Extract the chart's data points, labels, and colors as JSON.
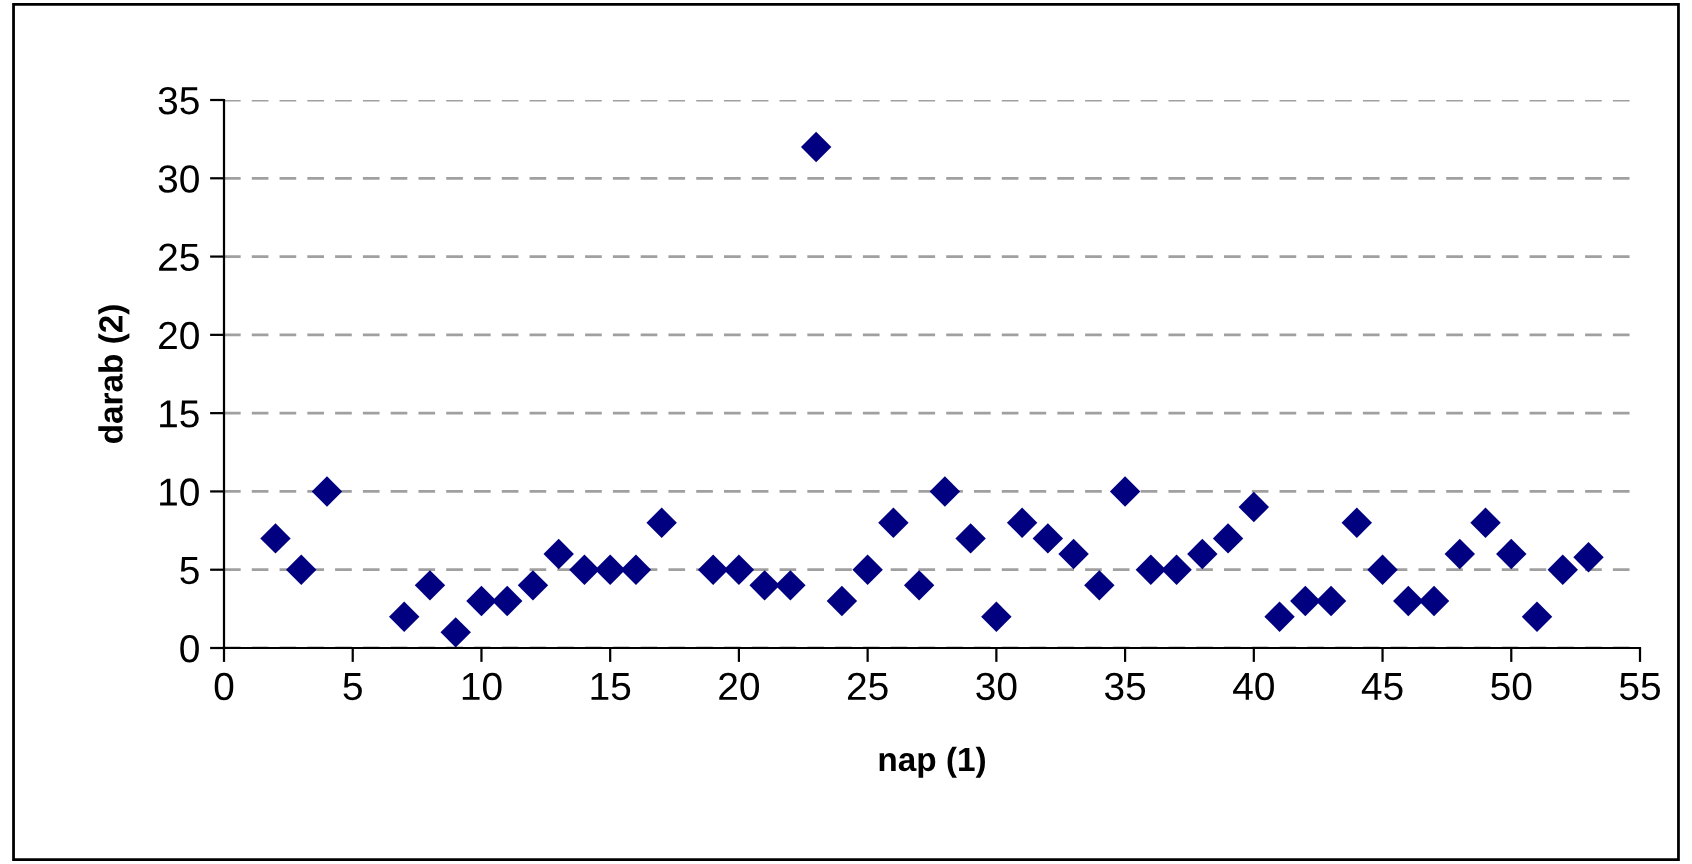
{
  "chart_data": {
    "type": "scatter",
    "xlabel": "nap (1)",
    "ylabel": "darab (2)",
    "x": [
      2,
      3,
      4,
      7,
      8,
      9,
      10,
      11,
      12,
      13,
      14,
      15,
      16,
      17,
      19,
      20,
      21,
      22,
      23,
      24,
      25,
      26,
      27,
      28,
      29,
      30,
      31,
      32,
      33,
      34,
      35,
      36,
      37,
      38,
      39,
      40,
      41,
      42,
      43,
      44,
      45,
      46,
      47,
      48,
      49,
      50,
      51,
      52,
      53
    ],
    "series": [
      {
        "color": "#000080",
        "values": [
          7,
          5,
          10,
          2,
          4,
          1,
          3,
          3,
          4,
          6,
          5,
          5,
          5,
          8,
          5,
          5,
          4,
          4,
          32,
          3,
          5,
          8,
          4,
          10,
          7,
          2,
          8,
          7,
          6,
          4,
          10,
          5,
          5,
          6,
          7,
          9,
          2,
          3,
          3,
          8,
          5,
          3,
          3,
          6,
          8,
          6,
          2,
          5,
          5.8
        ]
      }
    ],
    "xlim": [
      0,
      55
    ],
    "ylim": [
      0,
      35
    ],
    "xticks": [
      0,
      5,
      10,
      15,
      20,
      25,
      30,
      35,
      40,
      45,
      50,
      55
    ],
    "yticks": [
      0,
      5,
      10,
      15,
      20,
      25,
      30,
      35
    ],
    "grid": "y",
    "marker": "diamond",
    "legend": false
  }
}
